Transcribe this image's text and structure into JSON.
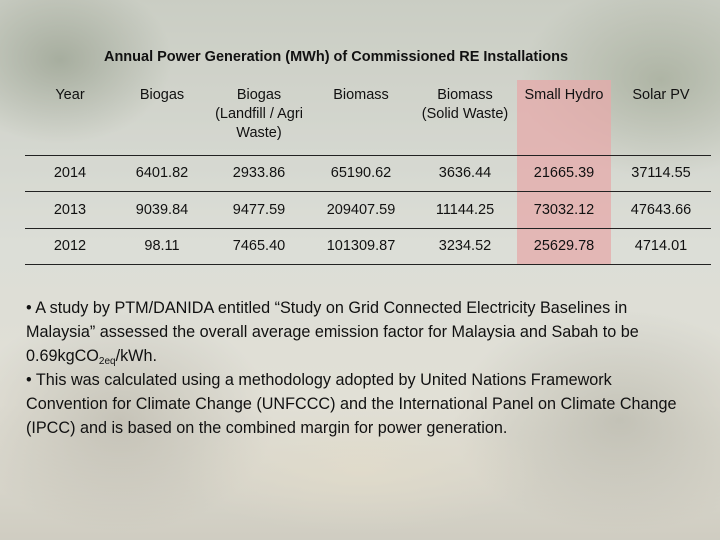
{
  "title": "Annual Power Generation (MWh) of Commissioned RE Installations",
  "table": {
    "headers": [
      [
        "Year"
      ],
      [
        "Biogas"
      ],
      [
        "Biogas",
        "(Landfill / Agri",
        "Waste)"
      ],
      [
        "Biomass"
      ],
      [
        "Biomass",
        "(Solid Waste)"
      ],
      [
        "Small Hydro"
      ],
      [
        "Solar PV"
      ]
    ],
    "rows": [
      [
        "2014",
        "6401.82",
        "2933.86",
        "65190.62",
        "3636.44",
        "21665.39",
        "37114.55"
      ],
      [
        "2013",
        "9039.84",
        "9477.59",
        "209407.59",
        "11144.25",
        "73032.12",
        "47643.66"
      ],
      [
        "2012",
        "98.11",
        "7465.40",
        "101309.87",
        "3234.52",
        "25629.78",
        "4714.01"
      ]
    ],
    "highlight_color": "#e6aaaa"
  },
  "notes": {
    "bullet": "•",
    "p1_before": "A study by PTM/DANIDA entitled “Study on Grid Connected Electricity Baselines in Malaysia” assessed the overall average emission factor for Malaysia and Sabah to be 0.69kg",
    "p1_co": "CO",
    "p1_sub": "2eq",
    "p1_after": "/kWh.",
    "p2": "This was calculated using a methodology adopted by United Nations Framework Convention for Climate Change (UNFCCC) and the International Panel on Climate Change (IPCC) and is based on the combined margin for power generation."
  }
}
